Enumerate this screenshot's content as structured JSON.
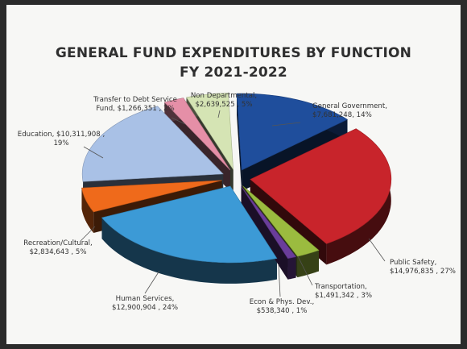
{
  "chart_data": {
    "type": "pie",
    "title": "GENERAL FUND EXPENDITURES BY FUNCTION",
    "subtitle": "FY 2021-2022",
    "slices": [
      {
        "label": "General Government,",
        "amount": "$7,681,248",
        "pct_text": "14%",
        "value": 7681248,
        "color": "#1f4e9c"
      },
      {
        "label": "Public Safety,",
        "amount": "$14,976,835",
        "pct_text": "27%",
        "value": 14976835,
        "color": "#c8242b"
      },
      {
        "label": "Transportation,",
        "amount": "$1,491,342",
        "pct_text": "3%",
        "value": 1491342,
        "color": "#9bbb3f"
      },
      {
        "label": "Econ & Phys. Dev.,",
        "amount": "$538,340",
        "pct_text": "1%",
        "value": 538340,
        "color": "#6a3d9a"
      },
      {
        "label": "Human Services,",
        "amount": "$12,900,904",
        "pct_text": "24%",
        "value": 12900904,
        "color": "#3c9ad6"
      },
      {
        "label": "Recreation/Cultural,",
        "amount": "$2,834,643",
        "pct_text": "5%",
        "value": 2834643,
        "color": "#ef6a1b"
      },
      {
        "label": "Education,",
        "amount": "$10,311,908",
        "pct_text": "19%",
        "value": 10311908,
        "color": "#a9c1e6"
      },
      {
        "label": "Transfer to Debt Service Fund,",
        "amount": "$1,266,351",
        "pct_text": "2%",
        "value": 1266351,
        "color": "#e58fa7"
      },
      {
        "label": "Non Departmental,",
        "amount": "$2,639,525",
        "pct_text": "5%",
        "value": 2639525,
        "color": "#d5e4b4"
      }
    ]
  }
}
